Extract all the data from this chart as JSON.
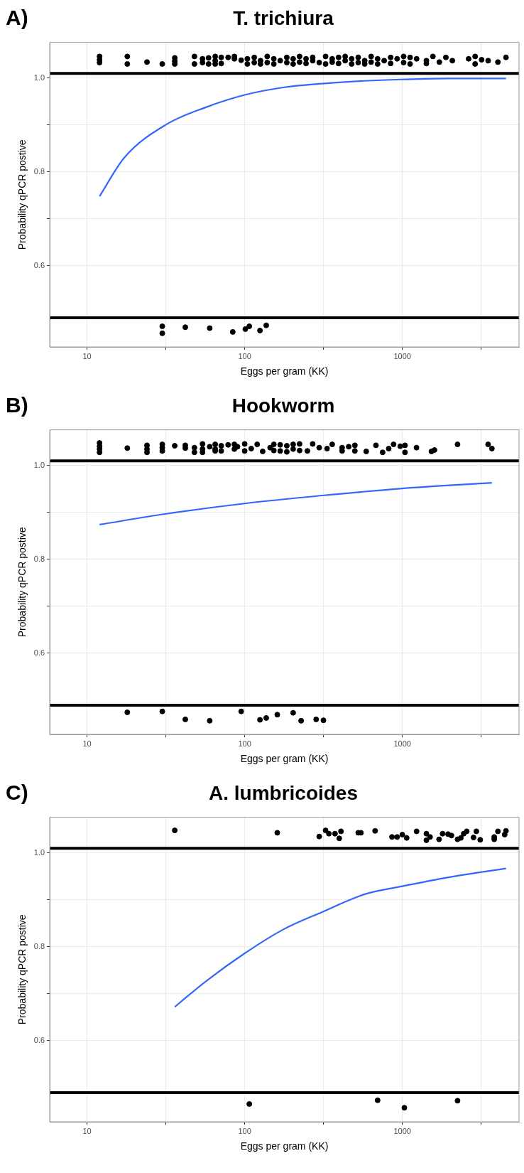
{
  "chart_data": [
    {
      "type": "scatter",
      "title": "T. trichiura",
      "annotations": [
        "A)"
      ],
      "xlabel": "Eggs per gram (KK)",
      "ylabel": "Probability qPCR postive",
      "log": "x",
      "grid": true,
      "marker": "circle",
      "legend": false,
      "xlim": [
        5.8,
        5500
      ],
      "xticks": [
        10,
        {
          "value": 31.6,
          "label": null
        },
        100,
        {
          "value": 316,
          "label": null
        },
        1000,
        {
          "value": 3162,
          "label": null
        }
      ],
      "ylim": [
        0.427,
        1.076
      ],
      "yticks": [
        {
          "value": 0.6,
          "label": "0.6"
        },
        {
          "value": 0.7,
          "label": null
        },
        {
          "value": 0.8,
          "label": "0.8"
        },
        {
          "value": 0.9,
          "label": null
        },
        {
          "value": 1.0,
          "label": "1.0"
        }
      ],
      "ref_lines": [
        {
          "axis": "y",
          "value": 1.01,
          "color": "#000000"
        },
        {
          "axis": "y",
          "value": 0.489,
          "color": "#000000"
        }
      ],
      "series": [
        {
          "color": "#000000",
          "x": [
            12,
            12,
            12,
            18,
            18,
            24,
            30,
            36,
            36,
            36,
            48,
            48,
            54,
            54,
            59,
            59,
            65,
            65,
            65,
            71,
            71,
            78.5,
            86,
            86,
            95,
            104,
            104,
            115,
            115,
            126,
            126,
            139,
            139,
            153,
            153,
            168,
            185,
            185,
            203,
            203,
            223,
            223,
            245,
            245,
            270,
            270,
            297,
            326,
            326,
            359,
            359,
            394,
            394,
            434,
            434,
            477,
            477,
            525,
            525,
            577,
            577,
            634,
            634,
            697,
            697,
            767,
            843,
            843,
            927,
            1019,
            1019,
            1120,
            1120,
            1232,
            1421,
            1421,
            1563,
            1718,
            1889,
            2077,
            2634,
            2897,
            2897,
            3185,
            3502,
            4039,
            4547
          ],
          "values": [
            1.046,
            1.039,
            1.033,
            1.046,
            1.03,
            1.034,
            1.03,
            1.043,
            1.036,
            1.03,
            1.046,
            1.03,
            1.041,
            1.033,
            1.043,
            1.03,
            1.046,
            1.037,
            1.03,
            1.044,
            1.031,
            1.044,
            1.046,
            1.041,
            1.038,
            1.041,
            1.03,
            1.044,
            1.033,
            1.037,
            1.03,
            1.046,
            1.033,
            1.041,
            1.03,
            1.037,
            1.044,
            1.033,
            1.03,
            1.041,
            1.046,
            1.034,
            1.031,
            1.041,
            1.044,
            1.037,
            1.033,
            1.046,
            1.03,
            1.041,
            1.034,
            1.044,
            1.031,
            1.037,
            1.046,
            1.03,
            1.041,
            1.044,
            1.033,
            1.037,
            1.03,
            1.046,
            1.034,
            1.041,
            1.03,
            1.037,
            1.044,
            1.031,
            1.041,
            1.046,
            1.033,
            1.044,
            1.03,
            1.041,
            1.037,
            1.031,
            1.046,
            1.034,
            1.044,
            1.037,
            1.041,
            1.046,
            1.03,
            1.039,
            1.037,
            1.034,
            1.044
          ]
        },
        {
          "color": "#000000",
          "x": [
            30,
            30,
            42,
            60,
            84,
            101,
            107,
            125,
            137
          ],
          "values": [
            0.471,
            0.456,
            0.469,
            0.467,
            0.459,
            0.465,
            0.471,
            0.462,
            0.473
          ]
        },
        {
          "type": "line",
          "marker": "none",
          "color": "#3366ff",
          "x": [
            12,
            17.2,
            31.8,
            56,
            100,
            176,
            310,
            577,
            1000,
            1960,
            4547
          ],
          "values": [
            0.748,
            0.83,
            0.901,
            0.937,
            0.964,
            0.98,
            0.988,
            0.994,
            0.997,
            0.999,
            0.999
          ]
        }
      ]
    },
    {
      "type": "scatter",
      "title": "Hookworm",
      "annotations": [
        "B)"
      ],
      "xlabel": "Eggs per gram (KK)",
      "ylabel": "Probability qPCR postive",
      "log": "x",
      "grid": true,
      "marker": "circle",
      "legend": false,
      "xlim": [
        5.8,
        5500
      ],
      "xticks": [
        10,
        {
          "value": 31.6,
          "label": null
        },
        100,
        {
          "value": 316,
          "label": null
        },
        1000,
        {
          "value": 3162,
          "label": null
        }
      ],
      "ylim": [
        0.427,
        1.076
      ],
      "yticks": [
        {
          "value": 0.6,
          "label": "0.6"
        },
        {
          "value": 0.7,
          "label": null
        },
        {
          "value": 0.8,
          "label": "0.8"
        },
        {
          "value": 0.9,
          "label": null
        },
        {
          "value": 1.0,
          "label": "1.0"
        }
      ],
      "ref_lines": [
        {
          "axis": "y",
          "value": 1.01,
          "color": "#000000"
        },
        {
          "axis": "y",
          "value": 0.489,
          "color": "#000000"
        }
      ],
      "series": [
        {
          "color": "#000000",
          "x": [
            12,
            12,
            12,
            12,
            18,
            24,
            24,
            24,
            30,
            30,
            30,
            36,
            42,
            42,
            48,
            48,
            54,
            54,
            54,
            60,
            65,
            65,
            65,
            71,
            71,
            78.5,
            86,
            86,
            90,
            100,
            100,
            110,
            120,
            130,
            145,
            153,
            153,
            168,
            168,
            185,
            185,
            203,
            203,
            223,
            223,
            250,
            270,
            297,
            333,
            359,
            415,
            415,
            457,
            500,
            500,
            590,
            680,
            750,
            820,
            880,
            970,
            1040,
            1040,
            1230,
            1530,
            1600,
            2240,
            3500,
            3700
          ],
          "values": [
            1.048,
            1.041,
            1.035,
            1.028,
            1.037,
            1.043,
            1.035,
            1.028,
            1.045,
            1.038,
            1.031,
            1.042,
            1.043,
            1.037,
            1.038,
            1.028,
            1.046,
            1.035,
            1.028,
            1.04,
            1.045,
            1.035,
            1.031,
            1.042,
            1.031,
            1.044,
            1.045,
            1.035,
            1.04,
            1.046,
            1.031,
            1.036,
            1.045,
            1.03,
            1.038,
            1.045,
            1.032,
            1.044,
            1.031,
            1.042,
            1.029,
            1.045,
            1.035,
            1.046,
            1.032,
            1.031,
            1.046,
            1.038,
            1.036,
            1.045,
            1.031,
            1.038,
            1.04,
            1.031,
            1.043,
            1.03,
            1.043,
            1.028,
            1.036,
            1.045,
            1.041,
            1.028,
            1.043,
            1.038,
            1.03,
            1.033,
            1.045,
            1.045,
            1.036
          ]
        },
        {
          "color": "#000000",
          "x": [
            18,
            30,
            42,
            60,
            95,
            125,
            137,
            161,
            203,
            228,
            284,
            316
          ],
          "values": [
            0.474,
            0.476,
            0.459,
            0.456,
            0.476,
            0.458,
            0.462,
            0.469,
            0.473,
            0.456,
            0.459,
            0.457
          ]
        },
        {
          "type": "line",
          "marker": "none",
          "color": "#3366ff",
          "x": [
            12,
            31.8,
            100,
            310,
            1000,
            3700
          ],
          "values": [
            0.874,
            0.897,
            0.919,
            0.936,
            0.951,
            0.963
          ]
        }
      ]
    },
    {
      "type": "scatter",
      "title": "A. lumbricoides",
      "annotations": [
        "C)"
      ],
      "xlabel": "Eggs per gram (KK)",
      "ylabel": "Probability qPCR postive",
      "log": "x",
      "grid": true,
      "marker": "circle",
      "legend": false,
      "xlim": [
        5.8,
        5500
      ],
      "xticks": [
        10,
        {
          "value": 31.6,
          "label": null
        },
        100,
        {
          "value": 316,
          "label": null
        },
        1000,
        {
          "value": 3162,
          "label": null
        }
      ],
      "ylim": [
        0.427,
        1.076
      ],
      "yticks": [
        {
          "value": 0.6,
          "label": "0.6"
        },
        {
          "value": 0.7,
          "label": null
        },
        {
          "value": 0.8,
          "label": "0.8"
        },
        {
          "value": 0.9,
          "label": null
        },
        {
          "value": 1.0,
          "label": "1.0"
        }
      ],
      "ref_lines": [
        {
          "axis": "y",
          "value": 1.01,
          "color": "#000000"
        },
        {
          "axis": "y",
          "value": 0.489,
          "color": "#000000"
        }
      ],
      "series": [
        {
          "color": "#000000",
          "x": [
            36,
            161,
            297,
            326,
            342,
            374,
            398,
            408,
            525,
            546,
            672,
            860,
            927,
            1000,
            1066,
            1232,
            1421,
            1421,
            1500,
            1710,
            1800,
            1950,
            2050,
            2240,
            2350,
            2450,
            2560,
            2830,
            2950,
            3120,
            3830,
            3830,
            4040,
            4460,
            4547
          ],
          "values": [
            1.048,
            1.043,
            1.035,
            1.048,
            1.041,
            1.041,
            1.031,
            1.046,
            1.043,
            1.043,
            1.047,
            1.034,
            1.034,
            1.039,
            1.032,
            1.046,
            1.041,
            1.027,
            1.034,
            1.029,
            1.041,
            1.04,
            1.037,
            1.029,
            1.032,
            1.041,
            1.046,
            1.033,
            1.046,
            1.028,
            1.034,
            1.029,
            1.046,
            1.039,
            1.047
          ]
        },
        {
          "color": "#000000",
          "x": [
            107,
            697,
            1030,
            2240
          ],
          "values": [
            0.465,
            0.473,
            0.457,
            0.472
          ]
        },
        {
          "type": "line",
          "marker": "none",
          "color": "#3366ff",
          "x": [
            36,
            56,
            100,
            176,
            310,
            577,
            1000,
            1960,
            4547
          ],
          "values": [
            0.672,
            0.725,
            0.786,
            0.837,
            0.874,
            0.912,
            0.929,
            0.948,
            0.967
          ]
        }
      ]
    }
  ]
}
